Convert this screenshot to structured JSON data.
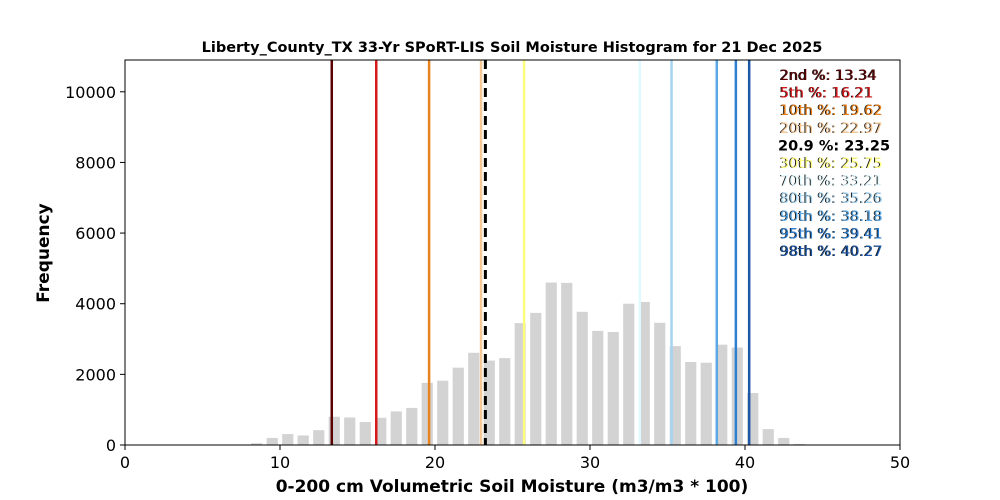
{
  "chart_data": {
    "type": "bar",
    "title": "Liberty_County_TX 33-Yr SPoRT-LIS Soil Moisture Histogram for 21 Dec 2025",
    "xlabel": "0-200 cm Volumetric Soil Moisture (m3/m3 * 100)",
    "ylabel": "Frequency",
    "xlim": [
      0,
      50
    ],
    "ylim": [
      0,
      10900
    ],
    "xticks": [
      0,
      10,
      20,
      30,
      40,
      50
    ],
    "yticks": [
      0,
      2000,
      4000,
      6000,
      8000,
      10000
    ],
    "bar_color": "#d3d3d3",
    "bins": {
      "x": [
        8.5,
        9.5,
        10.5,
        11.5,
        12.5,
        13.5,
        14.5,
        15.5,
        16.5,
        17.5,
        18.5,
        19.5,
        20.5,
        21.5,
        22.5,
        23.5,
        24.5,
        25.5,
        26.5,
        27.5,
        28.5,
        29.5,
        30.5,
        31.5,
        32.5,
        33.5,
        34.5,
        35.5,
        36.5,
        37.5,
        38.5,
        39.5,
        40.5,
        41.5,
        42.5,
        43.5
      ],
      "values": [
        50,
        200,
        310,
        270,
        420,
        800,
        780,
        650,
        770,
        950,
        1050,
        1760,
        1820,
        2190,
        2610,
        2390,
        2460,
        3450,
        3740,
        4600,
        4590,
        3770,
        3230,
        3200,
        4000,
        4050,
        3460,
        2800,
        2350,
        2330,
        2840,
        2760,
        1470,
        450,
        200,
        30
      ]
    },
    "percentiles": [
      {
        "label": "2nd %: 13.34",
        "value": 13.34,
        "color": "#5a0000",
        "style": "solid"
      },
      {
        "label": "5th %: 16.21",
        "value": 16.21,
        "color": "#d7191c",
        "style": "solid"
      },
      {
        "label": "10th %: 19.62",
        "value": 19.62,
        "color": "#e8821f",
        "style": "solid"
      },
      {
        "label": "20th %: 22.97",
        "value": 22.97,
        "color": "#f5c896",
        "style": "solid"
      },
      {
        "label": "20.9 %: 23.25",
        "value": 23.25,
        "color": "#000000",
        "style": "dashed"
      },
      {
        "label": "30th %: 25.75",
        "value": 25.75,
        "color": "#ffff7f",
        "style": "solid"
      },
      {
        "label": "70th %: 33.21",
        "value": 33.21,
        "color": "#e0f8ff",
        "style": "solid"
      },
      {
        "label": "80th %: 35.26",
        "value": 35.26,
        "color": "#a4d4f2",
        "style": "solid"
      },
      {
        "label": "90th %: 38.18",
        "value": 38.18,
        "color": "#5ba8e6",
        "style": "solid"
      },
      {
        "label": "95th %: 39.41",
        "value": 39.41,
        "color": "#2e7fd0",
        "style": "solid"
      },
      {
        "label": "98th %: 40.27",
        "value": 40.27,
        "color": "#1c57a8",
        "style": "solid"
      }
    ]
  }
}
